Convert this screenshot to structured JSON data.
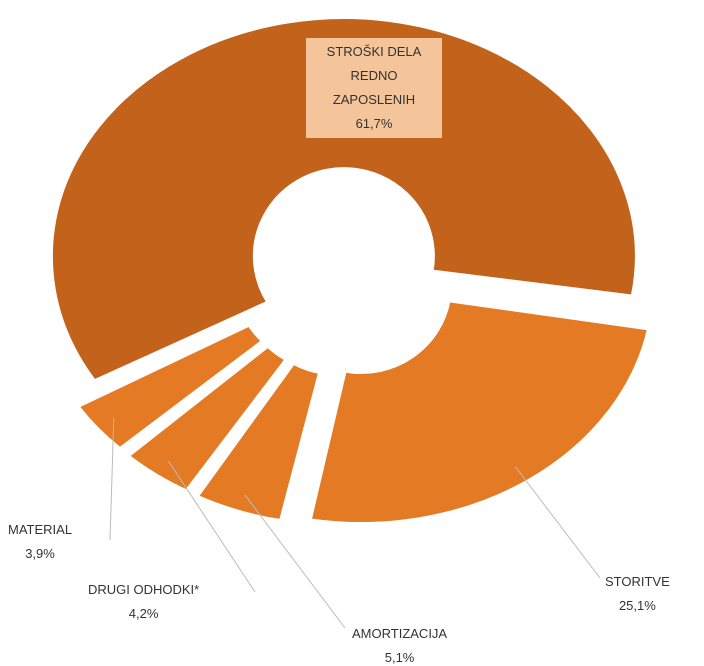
{
  "chart_data": {
    "type": "donut",
    "categories": [
      "STROŠKI DELA REDNO ZAPOSLENIH",
      "STORITVE",
      "AMORTIZACIJA",
      "DRUGI ODHODKI*",
      "MATERIAL"
    ],
    "values": [
      61.7,
      25.1,
      5.1,
      4.2,
      3.9
    ],
    "value_labels": [
      "61,7%",
      "25,1%",
      "5,1%",
      "4,2%",
      "3,9%"
    ],
    "colors": [
      "#c2621b",
      "#e47a24",
      "#e47a24",
      "#e47a24",
      "#e47a24"
    ]
  }
}
